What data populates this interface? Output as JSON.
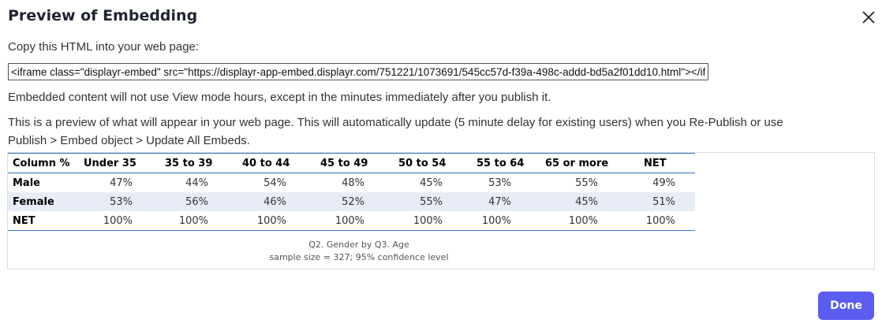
{
  "dialog": {
    "title": "Preview of Embedding",
    "copy_label": "Copy this HTML into your web page:",
    "embed_code": "<iframe class=\"displayr-embed\" src=\"https://displayr-app-embed.displayr.com/751221/1073691/545cc57d-f39a-498c-addd-bd5a2f01dd10.html\"></iframe>",
    "note": "Embedded content will not use View mode hours, except in the minutes immediately after you publish it.",
    "preview_line1": "This is a preview of what will appear in your web page. This will automatically update (5 minute delay for existing users) when you Re-Publish or use",
    "preview_line2": "Publish > Embed object > Update All Embeds.",
    "done_label": "Done",
    "accent": "#5b5cf0"
  },
  "table": {
    "headers": [
      "Column %",
      "Under 35",
      "35 to 39",
      "40 to 44",
      "45 to 49",
      "50 to 54",
      "55 to 64",
      "65 or more",
      "NET"
    ],
    "rows": [
      {
        "label": "Male",
        "values": [
          "47%",
          "44%",
          "54%",
          "48%",
          "45%",
          "53%",
          "55%",
          "49%"
        ]
      },
      {
        "label": "Female",
        "values": [
          "53%",
          "56%",
          "46%",
          "52%",
          "55%",
          "47%",
          "45%",
          "51%"
        ]
      },
      {
        "label": "NET",
        "values": [
          "100%",
          "100%",
          "100%",
          "100%",
          "100%",
          "100%",
          "100%",
          "100%"
        ]
      }
    ],
    "caption1": "Q2. Gender by Q3. Age",
    "caption2": "sample size = 327; 95% confidence level"
  }
}
